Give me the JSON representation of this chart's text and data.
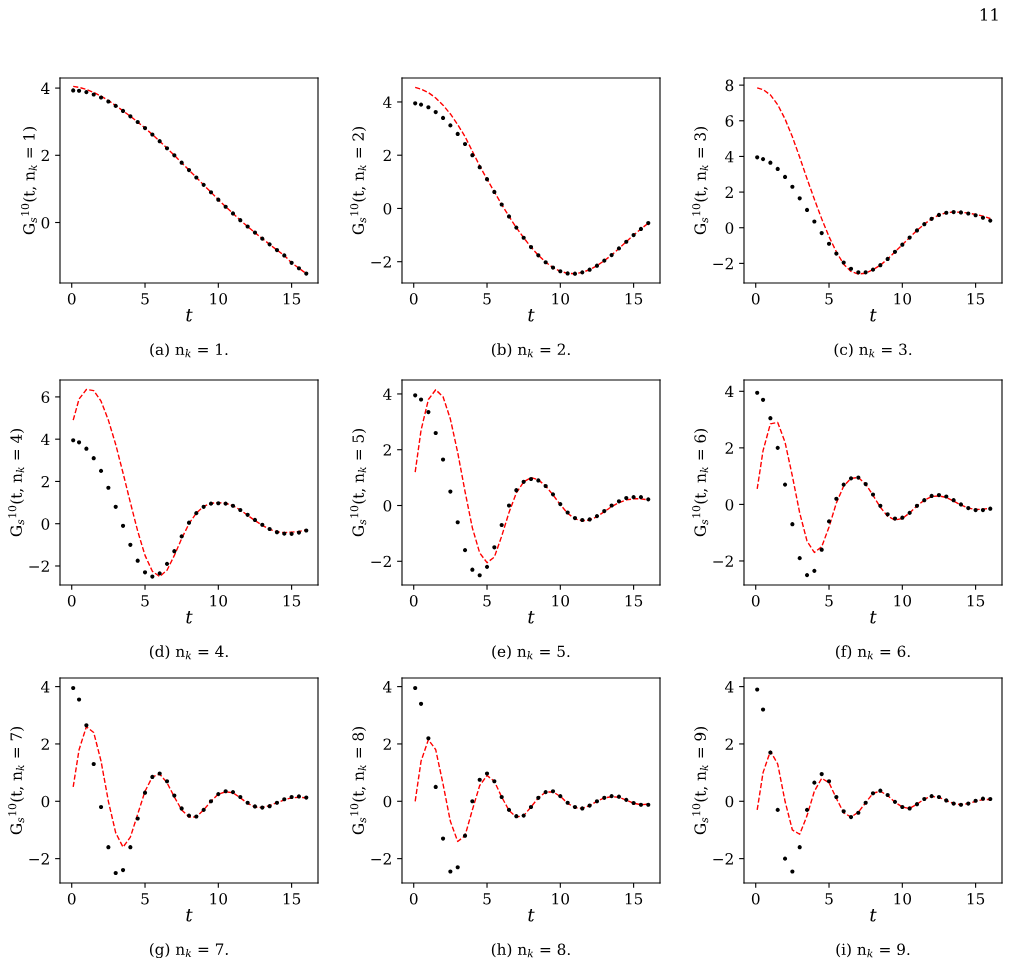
{
  "chart_data": [
    {
      "type": "line",
      "xlabel": "t",
      "ylabel": "G$_{s}$$^{10}$(t, n$_{k}$ = 1)",
      "annotations": [
        "(a) n$_{k}$ = 1.",
        "11"
      ],
      "xlim": [
        -0.8,
        16.8
      ],
      "xticks": [
        0,
        5,
        10,
        15
      ],
      "ylim": [
        -1.8,
        4.3
      ],
      "yticks": [
        0,
        2,
        4
      ],
      "x": [
        0.1,
        0.5,
        1,
        1.5,
        2,
        2.5,
        3,
        3.5,
        4,
        4.5,
        5,
        5.5,
        6,
        6.5,
        7,
        7.5,
        8,
        8.5,
        9,
        9.5,
        10,
        10.5,
        11,
        11.5,
        12,
        12.5,
        13,
        13.5,
        14,
        14.5,
        15,
        15.5,
        16
      ],
      "series": [
        {
          "type": "scatter",
          "marker": "circle",
          "color": "#000000",
          "values": [
            3.93,
            3.92,
            3.88,
            3.81,
            3.72,
            3.6,
            3.47,
            3.32,
            3.16,
            2.99,
            2.81,
            2.62,
            2.42,
            2.21,
            2.0,
            1.78,
            1.56,
            1.34,
            1.12,
            0.9,
            0.68,
            0.47,
            0.27,
            0.07,
            -0.12,
            -0.3,
            -0.48,
            -0.65,
            -0.82,
            -0.98,
            -1.2,
            -1.36,
            -1.52
          ]
        },
        {
          "type": "line",
          "line_style": "dashed",
          "color": "#ff0000",
          "values": [
            4.05,
            4.02,
            3.96,
            3.87,
            3.76,
            3.63,
            3.48,
            3.32,
            3.16,
            2.99,
            2.81,
            2.62,
            2.42,
            2.21,
            2.0,
            1.78,
            1.56,
            1.34,
            1.12,
            0.9,
            0.68,
            0.47,
            0.27,
            0.07,
            -0.12,
            -0.3,
            -0.48,
            -0.65,
            -0.82,
            -0.98,
            -1.2,
            -1.36,
            -1.52
          ]
        }
      ]
    },
    {
      "type": "line",
      "xlabel": "t",
      "ylabel": "G$_{s}$$^{10}$(t, n$_{k}$ = 2)",
      "annotations": [
        "(b) n$_{k}$ = 2."
      ],
      "xlim": [
        -0.8,
        16.8
      ],
      "xticks": [
        0,
        5,
        10,
        15
      ],
      "ylim": [
        -2.8,
        4.9
      ],
      "yticks": [
        -2,
        0,
        2,
        4
      ],
      "x": [
        0.1,
        0.5,
        1,
        1.5,
        2,
        2.5,
        3,
        3.5,
        4,
        4.5,
        5,
        5.5,
        6,
        6.5,
        7,
        7.5,
        8,
        8.5,
        9,
        9.5,
        10,
        10.5,
        11,
        11.5,
        12,
        12.5,
        13,
        13.5,
        14,
        14.5,
        15,
        15.5,
        16
      ],
      "series": [
        {
          "type": "scatter",
          "marker": "circle",
          "color": "#000000",
          "values": [
            3.95,
            3.9,
            3.8,
            3.62,
            3.4,
            3.12,
            2.8,
            2.42,
            2.0,
            1.55,
            1.1,
            0.62,
            0.15,
            -0.3,
            -0.72,
            -1.1,
            -1.45,
            -1.76,
            -2.02,
            -2.22,
            -2.36,
            -2.44,
            -2.45,
            -2.4,
            -2.3,
            -2.15,
            -1.96,
            -1.75,
            -1.5,
            -1.25,
            -1.0,
            -0.77,
            -0.55
          ]
        },
        {
          "type": "line",
          "line_style": "dashed",
          "color": "#ff0000",
          "values": [
            4.55,
            4.48,
            4.35,
            4.15,
            3.88,
            3.55,
            3.15,
            2.7,
            2.15,
            1.6,
            1.1,
            0.62,
            0.15,
            -0.3,
            -0.72,
            -1.1,
            -1.45,
            -1.76,
            -2.02,
            -2.22,
            -2.36,
            -2.44,
            -2.45,
            -2.4,
            -2.3,
            -2.15,
            -1.96,
            -1.75,
            -1.5,
            -1.25,
            -1.0,
            -0.77,
            -0.55
          ]
        }
      ]
    },
    {
      "type": "line",
      "xlabel": "t",
      "ylabel": "G$_{s}$$^{10}$(t, n$_{k}$ = 3)",
      "annotations": [
        "(c) n$_{k}$ = 3."
      ],
      "xlim": [
        -0.8,
        16.8
      ],
      "xticks": [
        0,
        5,
        10,
        15
      ],
      "ylim": [
        -3.1,
        8.4
      ],
      "yticks": [
        -2,
        0,
        2,
        4,
        6,
        8
      ],
      "x": [
        0.1,
        0.5,
        1,
        1.5,
        2,
        2.5,
        3,
        3.5,
        4,
        4.5,
        5,
        5.5,
        6,
        6.5,
        7,
        7.5,
        8,
        8.5,
        9,
        9.5,
        10,
        10.5,
        11,
        11.5,
        12,
        12.5,
        13,
        13.5,
        14,
        14.5,
        15,
        15.5,
        16
      ],
      "series": [
        {
          "type": "scatter",
          "marker": "circle",
          "color": "#000000",
          "values": [
            3.95,
            3.85,
            3.65,
            3.3,
            2.85,
            2.3,
            1.65,
            1.0,
            0.35,
            -0.3,
            -0.9,
            -1.45,
            -1.95,
            -2.3,
            -2.5,
            -2.5,
            -2.35,
            -2.1,
            -1.75,
            -1.35,
            -0.95,
            -0.55,
            -0.15,
            0.2,
            0.5,
            0.72,
            0.84,
            0.88,
            0.86,
            0.8,
            0.7,
            0.56,
            0.4
          ]
        },
        {
          "type": "line",
          "line_style": "dashed",
          "color": "#ff0000",
          "values": [
            7.85,
            7.75,
            7.45,
            6.9,
            6.1,
            5.1,
            3.95,
            2.75,
            1.6,
            0.5,
            -0.5,
            -1.35,
            -2.05,
            -2.45,
            -2.6,
            -2.55,
            -2.35,
            -2.1,
            -1.75,
            -1.35,
            -0.95,
            -0.55,
            -0.15,
            0.2,
            0.5,
            0.72,
            0.84,
            0.88,
            0.87,
            0.82,
            0.75,
            0.65,
            0.52
          ]
        }
      ]
    },
    {
      "type": "line",
      "xlabel": "t",
      "ylabel": "G$_{s}$$^{10}$(t, n$_{k}$ = 4)",
      "annotations": [
        "(d) n$_{k}$ = 4."
      ],
      "xlim": [
        -0.8,
        16.8
      ],
      "xticks": [
        0,
        5,
        10,
        15
      ],
      "ylim": [
        -2.9,
        6.8
      ],
      "yticks": [
        -2,
        0,
        2,
        4,
        6
      ],
      "x": [
        0.1,
        0.5,
        1,
        1.5,
        2,
        2.5,
        3,
        3.5,
        4,
        4.5,
        5,
        5.5,
        6,
        6.5,
        7,
        7.5,
        8,
        8.5,
        9,
        9.5,
        10,
        10.5,
        11,
        11.5,
        12,
        12.5,
        13,
        13.5,
        14,
        14.5,
        15,
        15.5,
        16
      ],
      "series": [
        {
          "type": "scatter",
          "marker": "circle",
          "color": "#000000",
          "values": [
            3.95,
            3.85,
            3.55,
            3.1,
            2.5,
            1.7,
            0.8,
            -0.1,
            -1.0,
            -1.75,
            -2.3,
            -2.5,
            -2.35,
            -1.9,
            -1.3,
            -0.6,
            0.05,
            0.5,
            0.8,
            0.95,
            0.97,
            0.95,
            0.85,
            0.65,
            0.42,
            0.18,
            -0.05,
            -0.25,
            -0.4,
            -0.47,
            -0.48,
            -0.42,
            -0.32
          ]
        },
        {
          "type": "line",
          "line_style": "dashed",
          "color": "#ff0000",
          "values": [
            4.9,
            5.9,
            6.35,
            6.3,
            5.8,
            4.9,
            3.75,
            2.4,
            1.0,
            -0.35,
            -1.5,
            -2.25,
            -2.5,
            -2.2,
            -1.5,
            -0.7,
            0.0,
            0.5,
            0.82,
            0.97,
            1.0,
            0.97,
            0.85,
            0.65,
            0.4,
            0.15,
            -0.08,
            -0.27,
            -0.38,
            -0.42,
            -0.4,
            -0.36,
            -0.3
          ]
        }
      ]
    },
    {
      "type": "line",
      "xlabel": "t",
      "ylabel": "G$_{s}$$^{10}$(t, n$_{k}$ = 5)",
      "annotations": [
        "(e) n$_{k}$ = 5."
      ],
      "xlim": [
        -0.8,
        16.8
      ],
      "xticks": [
        0,
        5,
        10,
        15
      ],
      "ylim": [
        -2.85,
        4.5
      ],
      "yticks": [
        -2,
        0,
        2,
        4
      ],
      "x": [
        0.1,
        0.5,
        1,
        1.5,
        2,
        2.5,
        3,
        3.5,
        4,
        4.5,
        5,
        5.5,
        6,
        6.5,
        7,
        7.5,
        8,
        8.5,
        9,
        9.5,
        10,
        10.5,
        11,
        11.5,
        12,
        12.5,
        13,
        13.5,
        14,
        14.5,
        15,
        15.5,
        16
      ],
      "series": [
        {
          "type": "scatter",
          "marker": "circle",
          "color": "#000000",
          "values": [
            3.95,
            3.8,
            3.35,
            2.6,
            1.65,
            0.5,
            -0.6,
            -1.6,
            -2.3,
            -2.5,
            -2.2,
            -1.5,
            -0.7,
            0.0,
            0.55,
            0.85,
            0.95,
            0.9,
            0.7,
            0.4,
            0.05,
            -0.25,
            -0.45,
            -0.52,
            -0.5,
            -0.38,
            -0.2,
            0.0,
            0.15,
            0.27,
            0.3,
            0.3,
            0.22
          ]
        },
        {
          "type": "line",
          "line_style": "dashed",
          "color": "#ff0000",
          "values": [
            1.2,
            2.7,
            3.8,
            4.15,
            3.9,
            3.1,
            1.9,
            0.5,
            -0.8,
            -1.7,
            -2.05,
            -1.85,
            -1.1,
            -0.25,
            0.45,
            0.85,
            1.0,
            0.92,
            0.7,
            0.38,
            0.03,
            -0.28,
            -0.48,
            -0.55,
            -0.52,
            -0.4,
            -0.22,
            -0.04,
            0.1,
            0.2,
            0.24,
            0.24,
            0.2
          ]
        }
      ]
    },
    {
      "type": "line",
      "xlabel": "t",
      "ylabel": "G$_{s}$$^{10}$(t, n$_{k}$ = 6)",
      "annotations": [
        "(f) n$_{k}$ = 6."
      ],
      "xlim": [
        -0.8,
        16.8
      ],
      "xticks": [
        0,
        5,
        10,
        15
      ],
      "ylim": [
        -2.85,
        4.4
      ],
      "yticks": [
        -2,
        0,
        2,
        4
      ],
      "x": [
        0.1,
        0.5,
        1,
        1.5,
        2,
        2.5,
        3,
        3.5,
        4,
        4.5,
        5,
        5.5,
        6,
        6.5,
        7,
        7.5,
        8,
        8.5,
        9,
        9.5,
        10,
        10.5,
        11,
        11.5,
        12,
        12.5,
        13,
        13.5,
        14,
        14.5,
        15,
        15.5,
        16
      ],
      "series": [
        {
          "type": "scatter",
          "marker": "circle",
          "color": "#000000",
          "values": [
            3.95,
            3.7,
            3.05,
            2.0,
            0.7,
            -0.7,
            -1.9,
            -2.5,
            -2.35,
            -1.6,
            -0.6,
            0.2,
            0.7,
            0.92,
            0.95,
            0.72,
            0.35,
            -0.05,
            -0.35,
            -0.5,
            -0.47,
            -0.3,
            -0.05,
            0.15,
            0.3,
            0.33,
            0.28,
            0.15,
            0.0,
            -0.13,
            -0.2,
            -0.2,
            -0.15
          ]
        },
        {
          "type": "line",
          "line_style": "dashed",
          "color": "#ff0000",
          "values": [
            0.55,
            1.9,
            2.85,
            2.9,
            2.2,
            1.0,
            -0.3,
            -1.3,
            -1.7,
            -1.5,
            -0.8,
            0.05,
            0.65,
            0.92,
            0.95,
            0.72,
            0.32,
            -0.1,
            -0.42,
            -0.55,
            -0.5,
            -0.3,
            -0.05,
            0.15,
            0.28,
            0.3,
            0.25,
            0.12,
            -0.02,
            -0.13,
            -0.18,
            -0.17,
            -0.13
          ]
        }
      ]
    },
    {
      "type": "line",
      "xlabel": "t",
      "ylabel": "G$_{s}$$^{10}$(t, n$_{k}$ = 7)",
      "annotations": [
        "(g) n$_{k}$ = 7."
      ],
      "xlim": [
        -0.8,
        16.8
      ],
      "xticks": [
        0,
        5,
        10,
        15
      ],
      "ylim": [
        -2.85,
        4.3
      ],
      "yticks": [
        -2,
        0,
        2,
        4
      ],
      "x": [
        0.1,
        0.5,
        1,
        1.5,
        2,
        2.5,
        3,
        3.5,
        4,
        4.5,
        5,
        5.5,
        6,
        6.5,
        7,
        7.5,
        8,
        8.5,
        9,
        9.5,
        10,
        10.5,
        11,
        11.5,
        12,
        12.5,
        13,
        13.5,
        14,
        14.5,
        15,
        15.5,
        16
      ],
      "series": [
        {
          "type": "scatter",
          "marker": "circle",
          "color": "#000000",
          "values": [
            3.95,
            3.55,
            2.65,
            1.3,
            -0.2,
            -1.6,
            -2.5,
            -2.4,
            -1.6,
            -0.6,
            0.3,
            0.85,
            0.97,
            0.7,
            0.2,
            -0.25,
            -0.5,
            -0.53,
            -0.3,
            0.0,
            0.25,
            0.35,
            0.32,
            0.15,
            -0.05,
            -0.18,
            -0.22,
            -0.17,
            -0.05,
            0.07,
            0.15,
            0.17,
            0.13
          ]
        },
        {
          "type": "line",
          "line_style": "dashed",
          "color": "#ff0000",
          "values": [
            0.5,
            1.8,
            2.6,
            2.4,
            1.4,
            0.0,
            -1.1,
            -1.6,
            -1.25,
            -0.45,
            0.35,
            0.85,
            0.95,
            0.65,
            0.15,
            -0.3,
            -0.55,
            -0.55,
            -0.3,
            0.0,
            0.25,
            0.33,
            0.3,
            0.12,
            -0.07,
            -0.2,
            -0.22,
            -0.15,
            -0.05,
            0.05,
            0.12,
            0.14,
            0.12
          ]
        }
      ]
    },
    {
      "type": "line",
      "xlabel": "t",
      "ylabel": "G$_{s}$$^{10}$(t, n$_{k}$ = 8)",
      "annotations": [
        "(h) n$_{k}$ = 8."
      ],
      "xlim": [
        -0.8,
        16.8
      ],
      "xticks": [
        0,
        5,
        10,
        15
      ],
      "ylim": [
        -2.85,
        4.3
      ],
      "yticks": [
        -2,
        0,
        2,
        4
      ],
      "x": [
        0.1,
        0.5,
        1,
        1.5,
        2,
        2.5,
        3,
        3.5,
        4,
        4.5,
        5,
        5.5,
        6,
        6.5,
        7,
        7.5,
        8,
        8.5,
        9,
        9.5,
        10,
        10.5,
        11,
        11.5,
        12,
        12.5,
        13,
        13.5,
        14,
        14.5,
        15,
        15.5,
        16
      ],
      "series": [
        {
          "type": "scatter",
          "marker": "circle",
          "color": "#000000",
          "values": [
            3.95,
            3.4,
            2.2,
            0.5,
            -1.3,
            -2.45,
            -2.3,
            -1.2,
            0.0,
            0.75,
            0.97,
            0.7,
            0.15,
            -0.3,
            -0.52,
            -0.5,
            -0.2,
            0.12,
            0.32,
            0.35,
            0.18,
            -0.05,
            -0.2,
            -0.25,
            -0.15,
            0.0,
            0.12,
            0.18,
            0.16,
            0.05,
            -0.06,
            -0.12,
            -0.12
          ]
        },
        {
          "type": "line",
          "line_style": "dashed",
          "color": "#ff0000",
          "values": [
            0.0,
            1.4,
            2.15,
            1.8,
            0.6,
            -0.7,
            -1.4,
            -1.2,
            -0.3,
            0.55,
            0.9,
            0.7,
            0.15,
            -0.32,
            -0.55,
            -0.5,
            -0.2,
            0.12,
            0.32,
            0.33,
            0.17,
            -0.07,
            -0.22,
            -0.25,
            -0.15,
            0.0,
            0.12,
            0.16,
            0.14,
            0.04,
            -0.07,
            -0.12,
            -0.1
          ]
        }
      ]
    },
    {
      "type": "line",
      "xlabel": "t",
      "ylabel": "G$_{s}$$^{10}$(t, n$_{k}$ = 9)",
      "annotations": [
        "(i) n$_{k}$ = 9."
      ],
      "xlim": [
        -0.8,
        16.8
      ],
      "xticks": [
        0,
        5,
        10,
        15
      ],
      "ylim": [
        -2.85,
        4.3
      ],
      "yticks": [
        -2,
        0,
        2,
        4
      ],
      "x": [
        0.1,
        0.5,
        1,
        1.5,
        2,
        2.5,
        3,
        3.5,
        4,
        4.5,
        5,
        5.5,
        6,
        6.5,
        7,
        7.5,
        8,
        8.5,
        9,
        9.5,
        10,
        10.5,
        11,
        11.5,
        12,
        12.5,
        13,
        13.5,
        14,
        14.5,
        15,
        15.5,
        16
      ],
      "series": [
        {
          "type": "scatter",
          "marker": "circle",
          "color": "#000000",
          "values": [
            3.9,
            3.2,
            1.7,
            -0.3,
            -2.0,
            -2.45,
            -1.6,
            -0.3,
            0.65,
            0.95,
            0.7,
            0.15,
            -0.35,
            -0.55,
            -0.4,
            -0.05,
            0.28,
            0.37,
            0.22,
            -0.02,
            -0.2,
            -0.25,
            -0.1,
            0.08,
            0.18,
            0.15,
            0.03,
            -0.08,
            -0.12,
            -0.08,
            0.02,
            0.09,
            0.08
          ]
        },
        {
          "type": "line",
          "line_style": "dashed",
          "color": "#ff0000",
          "values": [
            -0.3,
            1.0,
            1.75,
            1.3,
            0.0,
            -1.0,
            -1.15,
            -0.5,
            0.35,
            0.8,
            0.65,
            0.1,
            -0.4,
            -0.55,
            -0.38,
            -0.05,
            0.28,
            0.35,
            0.2,
            -0.03,
            -0.2,
            -0.25,
            -0.1,
            0.08,
            0.17,
            0.14,
            0.03,
            -0.08,
            -0.12,
            -0.08,
            0.0,
            0.06,
            0.06
          ]
        }
      ]
    }
  ]
}
